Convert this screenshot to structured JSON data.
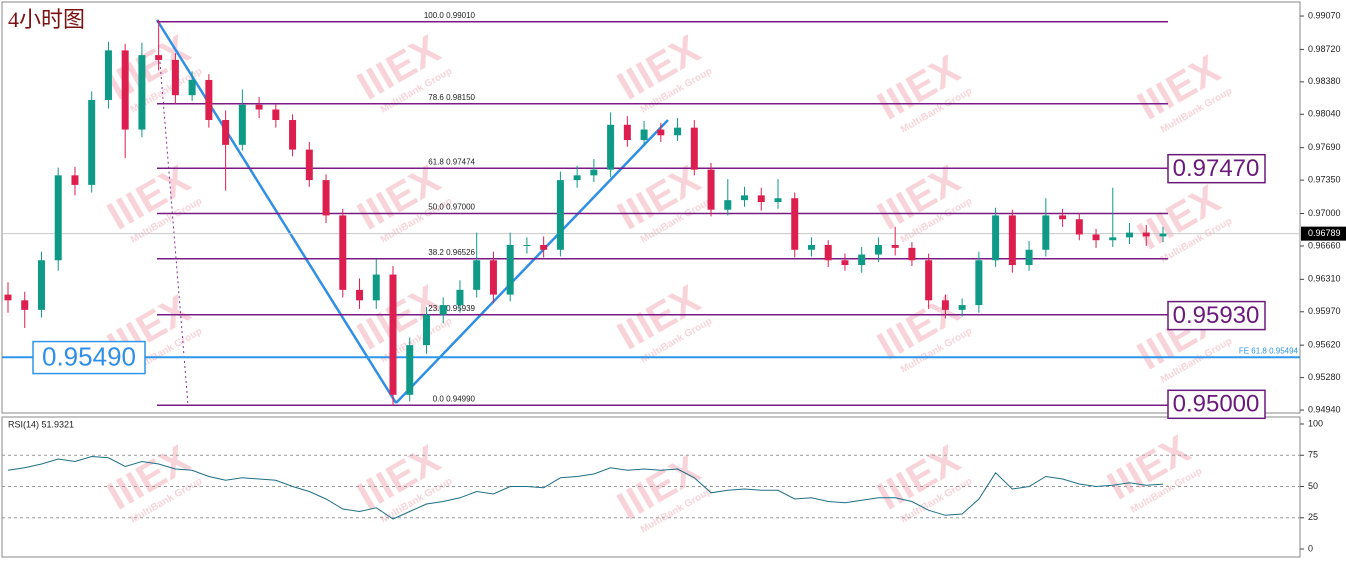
{
  "chart_data": [
    {
      "type": "candlestick",
      "title": "4小时图",
      "open": [
        0.9615,
        0.9609,
        0.9599,
        0.9651,
        0.974,
        0.973,
        0.9819,
        0.9871,
        0.9788,
        0.9866,
        0.9861,
        0.9824,
        0.984,
        0.9798,
        0.9772,
        0.9814,
        0.9809,
        0.9798,
        0.9767,
        0.9735,
        0.9698,
        0.962,
        0.9609,
        0.9636,
        0.951,
        0.9562,
        0.9594,
        0.9604,
        0.962,
        0.9651,
        0.9615,
        0.9667,
        0.9667,
        0.9662,
        0.9735,
        0.974,
        0.9746,
        0.9793,
        0.9777,
        0.9788,
        0.9782,
        0.979,
        0.9746,
        0.9704,
        0.9714,
        0.9719,
        0.9712,
        0.9716,
        0.9662,
        0.9667,
        0.9651,
        0.9646,
        0.9657,
        0.9667,
        0.9664,
        0.9651,
        0.9609,
        0.9599,
        0.9604,
        0.9651,
        0.9698,
        0.9646,
        0.9662,
        0.9698,
        0.9694,
        0.9678,
        0.9672,
        0.9675,
        0.968,
        0.9676
      ],
      "high": [
        0.9628,
        0.9618,
        0.966,
        0.9748,
        0.9749,
        0.9828,
        0.988,
        0.9878,
        0.9879,
        0.9903,
        0.9868,
        0.9849,
        0.9846,
        0.9808,
        0.983,
        0.9822,
        0.9815,
        0.9804,
        0.9775,
        0.9741,
        0.9705,
        0.9632,
        0.9652,
        0.9645,
        0.957,
        0.9602,
        0.9612,
        0.963,
        0.968,
        0.966,
        0.968,
        0.9675,
        0.9676,
        0.9744,
        0.975,
        0.9757,
        0.9806,
        0.9802,
        0.9797,
        0.9795,
        0.98,
        0.9798,
        0.9753,
        0.9736,
        0.9728,
        0.9727,
        0.9736,
        0.9722,
        0.9675,
        0.9672,
        0.9658,
        0.9665,
        0.9675,
        0.9686,
        0.967,
        0.9658,
        0.9615,
        0.9611,
        0.966,
        0.9706,
        0.9704,
        0.9671,
        0.9716,
        0.9705,
        0.97,
        0.9684,
        0.9727,
        0.969,
        0.9688,
        0.9686
      ],
      "low": [
        0.9596,
        0.958,
        0.9591,
        0.964,
        0.9719,
        0.9722,
        0.981,
        0.9758,
        0.978,
        0.985,
        0.9815,
        0.9818,
        0.979,
        0.9724,
        0.9766,
        0.98,
        0.979,
        0.976,
        0.9728,
        0.969,
        0.9612,
        0.96,
        0.96,
        0.9499,
        0.9503,
        0.9553,
        0.9585,
        0.9596,
        0.9612,
        0.9606,
        0.9608,
        0.9658,
        0.9654,
        0.9655,
        0.9727,
        0.9733,
        0.9738,
        0.977,
        0.9771,
        0.9775,
        0.9776,
        0.974,
        0.9697,
        0.9698,
        0.9707,
        0.9703,
        0.9705,
        0.9654,
        0.9655,
        0.9644,
        0.964,
        0.9638,
        0.9649,
        0.9656,
        0.9645,
        0.96,
        0.959,
        0.9592,
        0.9596,
        0.9644,
        0.9638,
        0.964,
        0.9655,
        0.9686,
        0.9672,
        0.9664,
        0.9665,
        0.9668,
        0.9666,
        0.967
      ],
      "close": [
        0.9609,
        0.9599,
        0.9651,
        0.974,
        0.973,
        0.9819,
        0.9871,
        0.9788,
        0.9866,
        0.9861,
        0.9824,
        0.984,
        0.9798,
        0.9772,
        0.9814,
        0.9809,
        0.9798,
        0.9767,
        0.9735,
        0.9698,
        0.962,
        0.9609,
        0.9636,
        0.951,
        0.9562,
        0.9594,
        0.9604,
        0.962,
        0.9651,
        0.9615,
        0.9667,
        0.9667,
        0.9662,
        0.9735,
        0.974,
        0.9746,
        0.9793,
        0.9777,
        0.9788,
        0.9782,
        0.979,
        0.9746,
        0.9704,
        0.9714,
        0.9719,
        0.9712,
        0.9716,
        0.9662,
        0.9667,
        0.9651,
        0.9646,
        0.9657,
        0.9667,
        0.9664,
        0.9651,
        0.9609,
        0.9599,
        0.9604,
        0.9651,
        0.9698,
        0.9646,
        0.9662,
        0.9698,
        0.9694,
        0.9678,
        0.9672,
        0.9675,
        0.968,
        0.9676,
        0.96789
      ],
      "up_color": "#0e9a87",
      "down_color": "#dc1f4e",
      "ylim": [
        0.94909,
        0.99217
      ],
      "yticks": [
        {
          "value": 0.9907,
          "label": "0.99070"
        },
        {
          "value": 0.9872,
          "label": "0.98720"
        },
        {
          "value": 0.9838,
          "label": "0.98380"
        },
        {
          "value": 0.9804,
          "label": "0.98040"
        },
        {
          "value": 0.9769,
          "label": "0.97690"
        },
        {
          "value": 0.9735,
          "label": "0.97350"
        },
        {
          "value": 0.97,
          "label": "0.97000"
        },
        {
          "value": 0.9666,
          "label": "0.96660"
        },
        {
          "value": 0.9631,
          "label": "0.96310"
        },
        {
          "value": 0.9597,
          "label": "0.95970"
        },
        {
          "value": 0.9562,
          "label": "0.95620"
        },
        {
          "value": 0.9528,
          "label": "0.95280"
        },
        {
          "value": 0.9494,
          "label": "0.94940"
        }
      ],
      "current_price": {
        "value": 0.96789,
        "label": "0.96789"
      },
      "fib_levels": [
        {
          "value": 0.9901,
          "label": "100.0 0.99010"
        },
        {
          "value": 0.9815,
          "label": "78.6 0.98150"
        },
        {
          "value": 0.97474,
          "label": "61.8 0.97474"
        },
        {
          "value": 0.97,
          "label": "50.0 0.97000"
        },
        {
          "value": 0.96526,
          "label": "38.2 0.96526"
        },
        {
          "value": 0.95939,
          "label": "23.6 0.95939"
        },
        {
          "value": 0.9499,
          "label": "0.0 0.94990"
        }
      ],
      "price_boxes": [
        {
          "value": 0.9747,
          "label": "0.97470"
        },
        {
          "value": 0.9593,
          "label": "0.95930"
        },
        {
          "value": 0.95,
          "label": "0.95000"
        }
      ],
      "fe_level": {
        "value": 0.95494,
        "label": "FE 61.8 0.95494"
      },
      "fe_box": {
        "value": 0.9549,
        "label": "0.95490"
      }
    },
    {
      "type": "line",
      "title": "RSI(14) 51.9321",
      "values": [
        63,
        65,
        68,
        72,
        70,
        74,
        73,
        66,
        70,
        68,
        64,
        63,
        58,
        55,
        57,
        56,
        55,
        50,
        46,
        40,
        32,
        30,
        33,
        24,
        30,
        36,
        38,
        41,
        46,
        44,
        50,
        50,
        49,
        57,
        58,
        60,
        65,
        63,
        64,
        63,
        64,
        57,
        45,
        47,
        48,
        47,
        47,
        40,
        41,
        38,
        37,
        39,
        41,
        41,
        38,
        31,
        27,
        28,
        40,
        61,
        48,
        50,
        58,
        56,
        52,
        50,
        51,
        53,
        51,
        51.93
      ],
      "color": "#1d6f86",
      "ylim": [
        -6.4,
        105.6
      ],
      "yticks": [
        100,
        75,
        50,
        25,
        0
      ],
      "levels": [
        75,
        50,
        25
      ]
    }
  ],
  "watermark": {
    "logo": "IIIEX",
    "text": "MultiBank Group"
  }
}
